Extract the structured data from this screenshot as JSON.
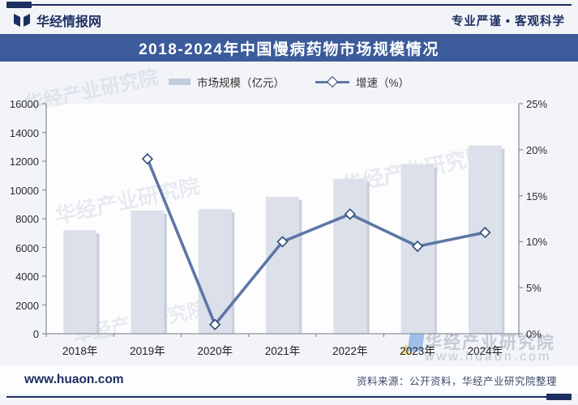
{
  "header": {
    "brand": "华经情报网",
    "tagline": "专业严谨 • 客观科学"
  },
  "title": {
    "text": "2018-2024年中国慢病药物市场规模情况"
  },
  "legend": {
    "bar_label": "市场规模（亿元）",
    "line_label": "增速（%）"
  },
  "chart_data": {
    "type": "bar+line",
    "title": "2018-2024年中国慢病药物市场规模情况",
    "categories": [
      "2018年",
      "2019年",
      "2020年",
      "2021年",
      "2022年",
      "2023年",
      "2024年"
    ],
    "series": [
      {
        "name": "市场规模（亿元）",
        "type": "bar",
        "axis": "left",
        "values": [
          7200,
          8570,
          8660,
          9530,
          10770,
          11790,
          13090
        ]
      },
      {
        "name": "增速（%）",
        "type": "line",
        "axis": "right",
        "values": [
          null,
          19.0,
          1.0,
          10.0,
          13.0,
          9.5,
          11.0
        ]
      }
    ],
    "left_axis": {
      "min": 0,
      "max": 16000,
      "step": 2000,
      "tick_labels": [
        "0",
        "2000",
        "4000",
        "6000",
        "8000",
        "10000",
        "12000",
        "14000",
        "16000"
      ]
    },
    "right_axis": {
      "min": 0,
      "max": 25,
      "step": 5,
      "tick_labels": [
        "0%",
        "5%",
        "10%",
        "15%",
        "20%",
        "25%"
      ]
    },
    "grid": false,
    "legend_position": "top"
  },
  "watermark": {
    "name": "华经产业研究院",
    "site": "www.huaon.com"
  },
  "footer": {
    "site": "www.huaon.com",
    "source": "资料来源：公开资料，华经产业研究院整理"
  },
  "colors": {
    "navy": "#1c2f60",
    "banner_blue": "#3b5b9a",
    "bar_fill": "#dbe0ea",
    "bar_shadow": "#b9c0cd",
    "line_blue": "#5d77a6",
    "diamond_stroke": "#2e4977",
    "axis_gray": "#8d939c"
  }
}
